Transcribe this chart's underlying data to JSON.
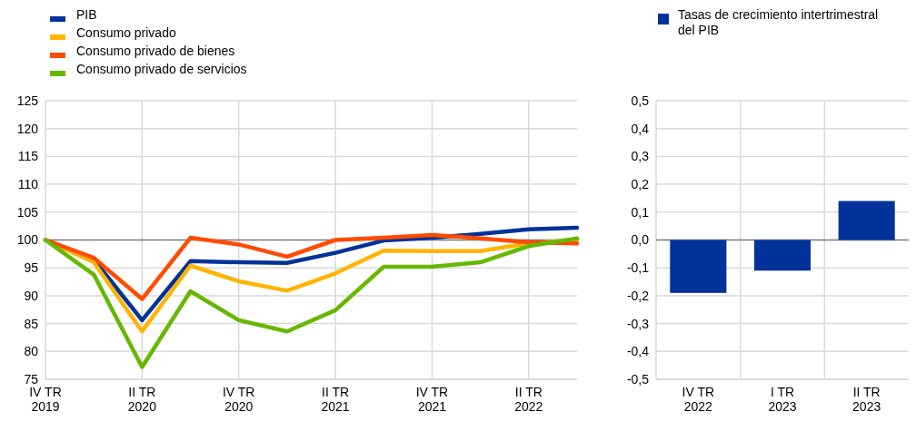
{
  "chart_data": [
    {
      "type": "line",
      "categories": [
        "IV TR 2019",
        null,
        "II TR 2020",
        null,
        "IV TR 2020",
        null,
        "II TR 2021",
        null,
        "IV TR 2021",
        null,
        "II TR 2022",
        null
      ],
      "series": [
        {
          "name": "PIB",
          "color": "#003299",
          "values": [
            100,
            96.5,
            85.6,
            96.2,
            96.0,
            95.9,
            97.7,
            99.9,
            100.4,
            101.1,
            101.9,
            102.2
          ]
        },
        {
          "name": "Consumo privado",
          "color": "#ffb400",
          "values": [
            100,
            96.0,
            83.6,
            95.4,
            92.6,
            90.9,
            94.0,
            98.1,
            98.0,
            98.0,
            99.4,
            100.0
          ]
        },
        {
          "name": "Consumo privado de bienes",
          "color": "#ff4b00",
          "values": [
            100,
            96.8,
            89.4,
            100.4,
            99.2,
            97.0,
            100.0,
            100.4,
            100.9,
            100.3,
            99.6,
            99.4
          ]
        },
        {
          "name": "Consumo privado de servicios",
          "color": "#65b800",
          "values": [
            100,
            93.8,
            77.2,
            90.8,
            85.6,
            83.6,
            87.4,
            95.2,
            95.2,
            96.0,
            98.9,
            100.3
          ]
        }
      ],
      "ylim": [
        75,
        125
      ],
      "yticks": [
        75,
        80,
        85,
        90,
        95,
        100,
        105,
        110,
        115,
        120,
        125
      ],
      "grid": true,
      "legend": "top left",
      "ref_lines": [
        {
          "axis": "y",
          "value": 100,
          "color": "#808080"
        }
      ]
    },
    {
      "type": "bar",
      "categories": [
        "IV TR 2022",
        "I TR 2023",
        "II TR 2023"
      ],
      "series": [
        {
          "name": "Tasas de crecimiento intertrimestral del PIB",
          "color": "#003299",
          "values": [
            -0.19,
            -0.11,
            0.14
          ]
        }
      ],
      "ylim": [
        -0.5,
        0.5
      ],
      "yticks": [
        {
          "value": -0.5,
          "label": "-0,5"
        },
        {
          "value": -0.4,
          "label": "-0,4"
        },
        {
          "value": -0.3,
          "label": "-0,3"
        },
        {
          "value": -0.2,
          "label": "-0,2"
        },
        {
          "value": -0.1,
          "label": "-0,1"
        },
        {
          "value": 0,
          "label": "0,0"
        },
        {
          "value": 0.1,
          "label": "0,1"
        },
        {
          "value": 0.2,
          "label": "0,2"
        },
        {
          "value": 0.3,
          "label": "0,3"
        },
        {
          "value": 0.4,
          "label": "0,4"
        },
        {
          "value": 0.5,
          "label": "0,5"
        }
      ],
      "grid": true,
      "legend": "top left",
      "ref_lines": [
        {
          "axis": "y",
          "value": 0,
          "color": "#808080"
        }
      ]
    }
  ]
}
